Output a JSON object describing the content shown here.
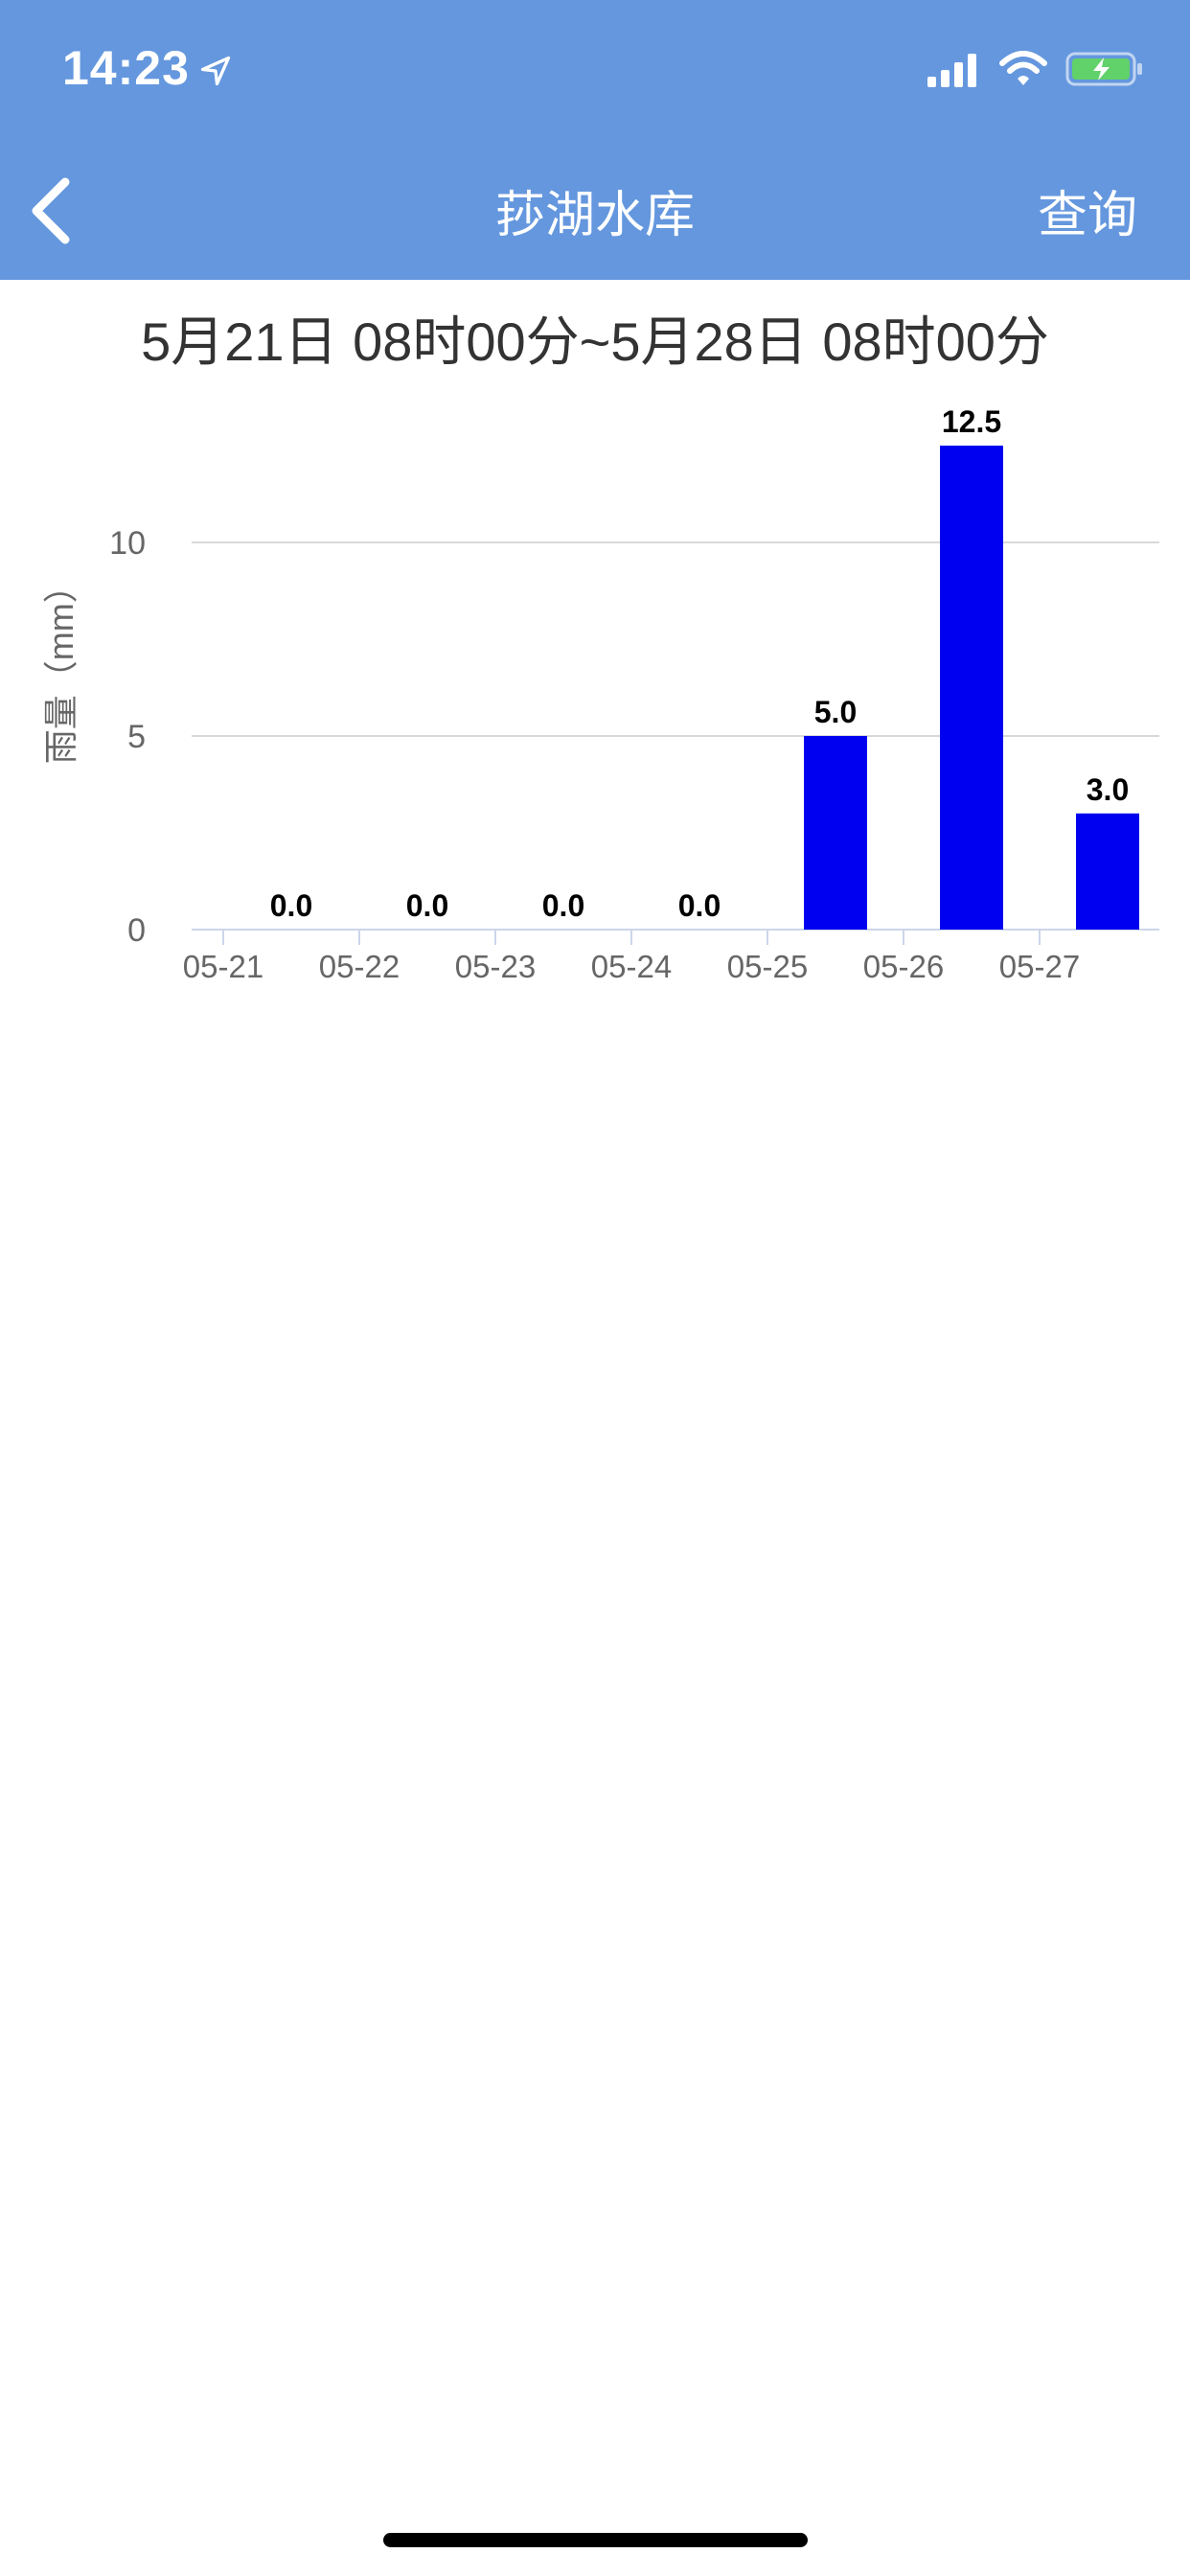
{
  "status_bar": {
    "time": "14:23"
  },
  "nav": {
    "title": "莏湖水库",
    "query_label": "查询"
  },
  "date_range": "5月21日 08时00分~5月28日 08时00分",
  "colors": {
    "header": "#6497DE",
    "bar": "#0000F0",
    "grid": "#D9D9D9",
    "axis": "#CCD6EB"
  },
  "chart_data": {
    "type": "bar",
    "categories": [
      "05-21",
      "05-22",
      "05-23",
      "05-24",
      "05-25",
      "05-26",
      "05-27"
    ],
    "values": [
      0.0,
      0.0,
      0.0,
      0.0,
      5.0,
      12.5,
      3.0
    ],
    "value_labels": [
      "0.0",
      "0.0",
      "0.0",
      "0.0",
      "5.0",
      "12.5",
      "3.0"
    ],
    "ylabel": "雨量（mm）",
    "ylim": [
      0,
      12.5
    ],
    "yticks": [
      0,
      5,
      10
    ],
    "grid": true
  }
}
